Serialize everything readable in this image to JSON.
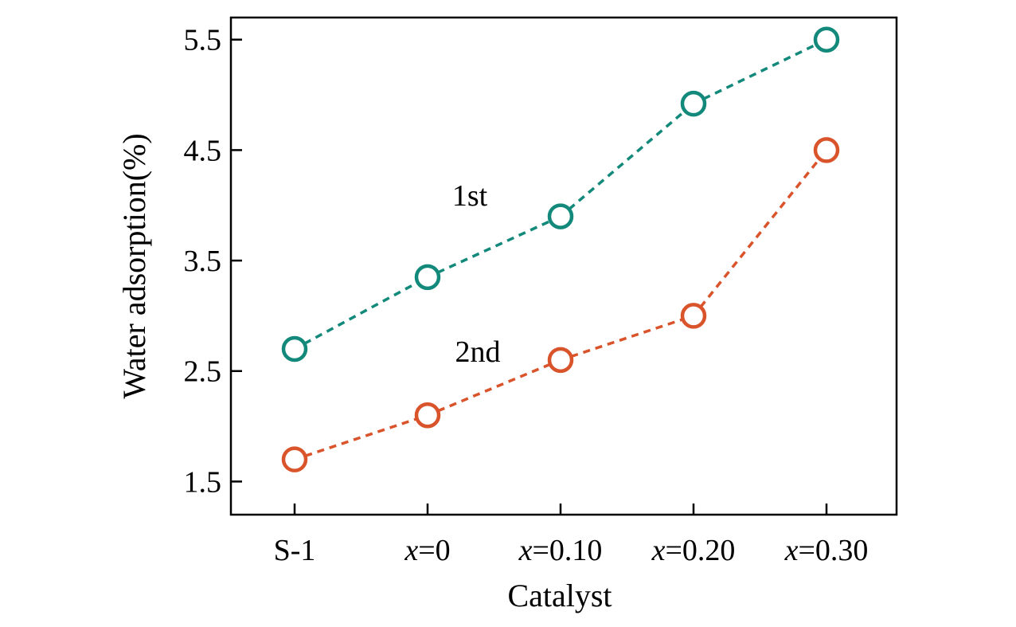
{
  "chart_data": {
    "type": "line",
    "title": "",
    "xlabel": "Catalyst",
    "ylabel": "Water adsorption(%)",
    "categories": [
      {
        "italic": "",
        "rest": "S-1"
      },
      {
        "italic": "x",
        "rest": "=0"
      },
      {
        "italic": "x",
        "rest": "=0.10"
      },
      {
        "italic": "x",
        "rest": "=0.20"
      },
      {
        "italic": "x",
        "rest": "=0.30"
      }
    ],
    "ylim": [
      1.2,
      5.7
    ],
    "yticks": [
      1.5,
      2.5,
      3.5,
      4.5,
      5.5
    ],
    "ytick_labels": [
      "1.5",
      "2.5",
      "3.5",
      "4.5",
      "5.5"
    ],
    "grid": false,
    "series": [
      {
        "name": "1st",
        "color": "#12897a",
        "values": [
          2.7,
          3.35,
          3.9,
          4.92,
          5.5
        ],
        "marker": "open-circle",
        "linestyle": "dashed"
      },
      {
        "name": "2nd",
        "color": "#d9532b",
        "values": [
          1.7,
          2.1,
          2.6,
          3.0,
          4.5
        ],
        "marker": "open-circle",
        "linestyle": "dashed"
      }
    ]
  }
}
